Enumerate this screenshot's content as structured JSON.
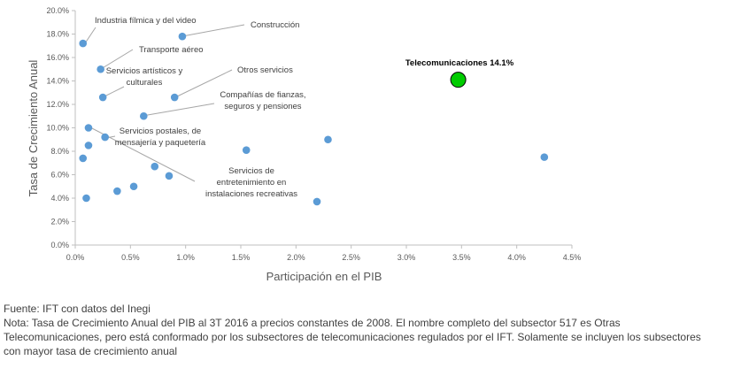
{
  "chart_data": {
    "type": "scatter",
    "xlabel": "Participación en el PIB",
    "ylabel": "Tasa de Crecimiento Anual",
    "xlim": [
      0,
      4.5
    ],
    "ylim": [
      0,
      20
    ],
    "x_ticks": [
      "0.0%",
      "0.5%",
      "1.0%",
      "1.5%",
      "2.0%",
      "2.5%",
      "3.0%",
      "3.5%",
      "4.0%",
      "4.5%"
    ],
    "y_ticks": [
      "0.0%",
      "2.0%",
      "4.0%",
      "6.0%",
      "8.0%",
      "10.0%",
      "12.0%",
      "14.0%",
      "16.0%",
      "18.0%",
      "20.0%"
    ],
    "grid": false,
    "legend": "none",
    "point_color": "#5b9bd5",
    "highlight_color": "#00cc00",
    "points": [
      {
        "x": 0.07,
        "y": 17.2
      },
      {
        "x": 0.97,
        "y": 17.8
      },
      {
        "x": 0.23,
        "y": 15.0
      },
      {
        "x": 0.25,
        "y": 12.6
      },
      {
        "x": 0.9,
        "y": 12.6
      },
      {
        "x": 0.62,
        "y": 11.0
      },
      {
        "x": 0.12,
        "y": 10.0
      },
      {
        "x": 0.27,
        "y": 9.2
      },
      {
        "x": 0.12,
        "y": 8.5
      },
      {
        "x": 0.07,
        "y": 7.4
      },
      {
        "x": 0.72,
        "y": 6.7
      },
      {
        "x": 0.85,
        "y": 5.9
      },
      {
        "x": 0.53,
        "y": 5.0
      },
      {
        "x": 0.38,
        "y": 4.6
      },
      {
        "x": 0.1,
        "y": 4.0
      },
      {
        "x": 1.55,
        "y": 8.1
      },
      {
        "x": 2.29,
        "y": 9.0
      },
      {
        "x": 2.19,
        "y": 3.7
      },
      {
        "x": 4.25,
        "y": 7.5
      }
    ],
    "highlight": {
      "x": 3.47,
      "y": 14.1,
      "label": "Telecomunicaciones 14.1%"
    },
    "annotations": [
      {
        "lines": [
          "Industria fílmica y del video"
        ]
      },
      {
        "lines": [
          "Construcción"
        ]
      },
      {
        "lines": [
          "Transporte aéreo"
        ]
      },
      {
        "lines": [
          "Servicios artísticos y",
          "culturales"
        ]
      },
      {
        "lines": [
          "Otros servicios"
        ]
      },
      {
        "lines": [
          "Compañías de fianzas,",
          "seguros y pensiones"
        ]
      },
      {
        "lines": [
          "Servicios postales, de",
          "mensajería y paquetería"
        ]
      },
      {
        "lines": [
          "Servicios de",
          "entretenimiento en",
          "instalaciones recreativas"
        ]
      }
    ]
  },
  "footer": {
    "lines": [
      "Fuente: IFT con datos del Inegi",
      "Nota: Tasa de Crecimiento Anual del PIB al 3T 2016 a precios constantes de 2008. El nombre completo del subsector 517 es Otras",
      "Telecomunicaciones, pero está conformado por los subsectores de telecomunicaciones regulados por el IFT. Solamente se incluyen los subsectores",
      "con mayor tasa de crecimiento anual"
    ]
  }
}
